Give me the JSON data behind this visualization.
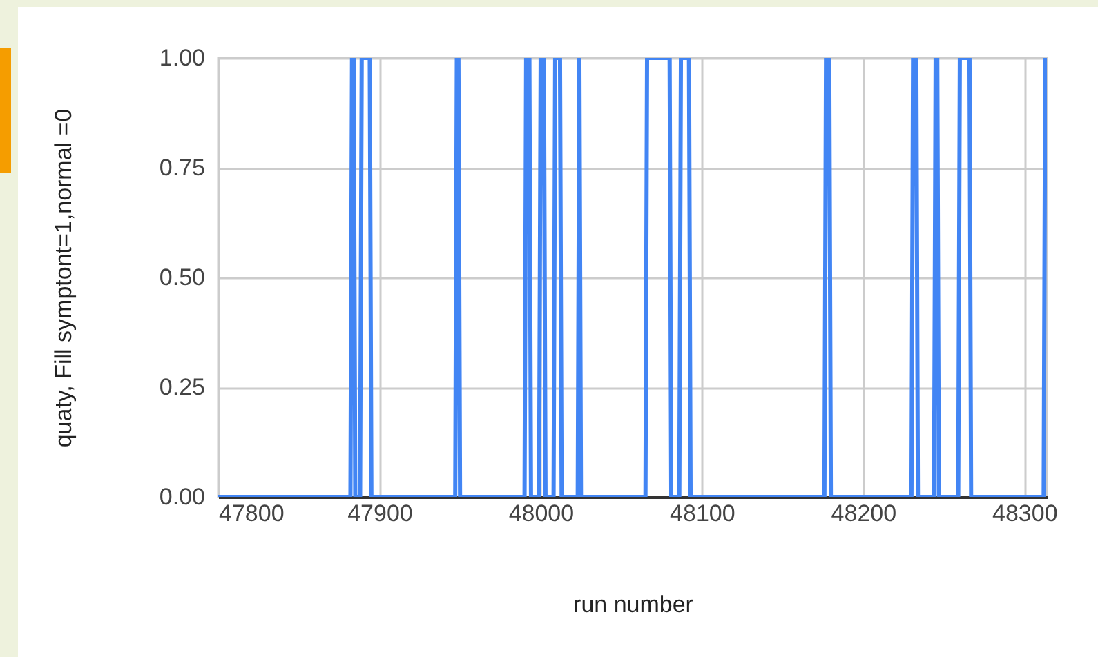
{
  "chart_data": {
    "type": "line",
    "xlabel": "run number",
    "ylabel": "quaty, Fill symptont=1,normal =0",
    "x": [
      47800,
      47882,
      47883,
      47884,
      47885,
      47888,
      47889,
      47894,
      47895,
      47947,
      47948,
      47949,
      47950,
      47990,
      47991,
      47993,
      47994,
      47999,
      48000,
      48002,
      48003,
      48008,
      48009,
      48012,
      48013,
      48023,
      48024,
      48025,
      48065,
      48066,
      48080,
      48081,
      48086,
      48087,
      48092,
      48093,
      48176,
      48177,
      48179,
      48180,
      48230,
      48231,
      48233,
      48234,
      48244,
      48245,
      48246,
      48247,
      48259,
      48260,
      48266,
      48267,
      48312,
      48313,
      48314
    ],
    "series": [
      {
        "color": "#4285f4",
        "values": [
          0,
          0,
          1,
          1,
          0,
          0,
          1,
          1,
          0,
          0,
          1,
          1,
          0,
          0,
          1,
          1,
          0,
          0,
          1,
          1,
          0,
          0,
          1,
          1,
          0,
          0,
          1,
          0,
          0,
          1,
          1,
          0,
          0,
          1,
          1,
          0,
          0,
          1,
          1,
          0,
          0,
          1,
          1,
          0,
          0,
          1,
          1,
          0,
          0,
          1,
          1,
          0,
          0,
          1,
          1
        ]
      }
    ],
    "xlim": [
      47800,
      48314
    ],
    "xticks": [
      47800,
      47900,
      48000,
      48100,
      48200,
      48300
    ],
    "ylim": [
      0,
      1
    ],
    "yticks": [
      {
        "value": 0,
        "label": "0.00"
      },
      {
        "value": 0.25,
        "label": "0.25"
      },
      {
        "value": 0.5,
        "label": "0.50"
      },
      {
        "value": 0.75,
        "label": "0.75"
      },
      {
        "value": 1,
        "label": "1.00"
      }
    ],
    "grid": true,
    "marker": "none",
    "line_style": "solid"
  }
}
